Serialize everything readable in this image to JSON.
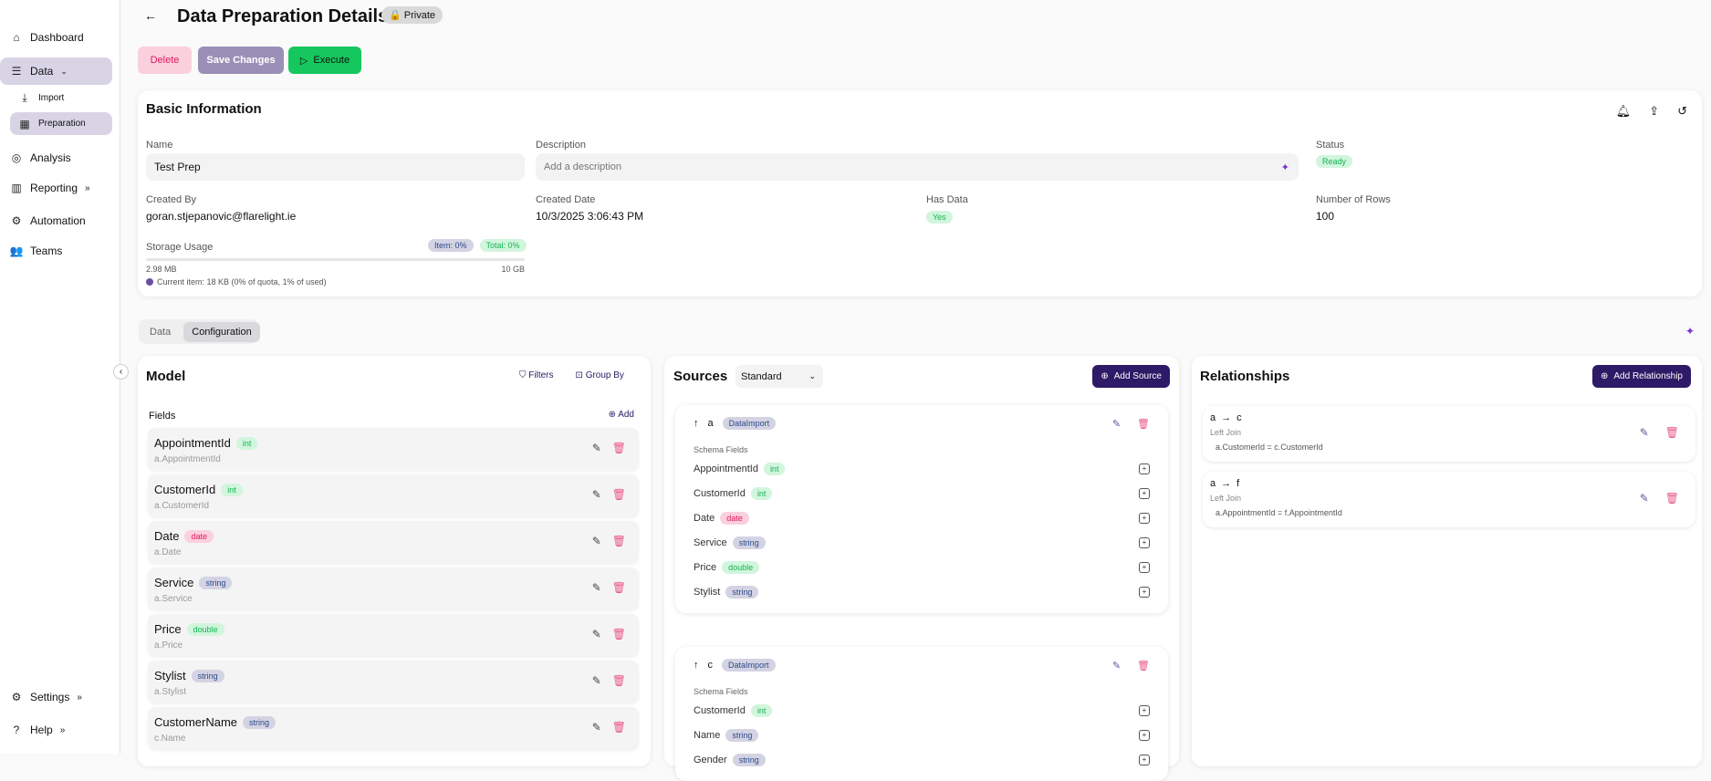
{
  "sidebar": {
    "items": [
      {
        "label": "Dashboard",
        "icon": "home-icon"
      },
      {
        "label": "Data",
        "icon": "database-icon"
      },
      {
        "label": "Import",
        "icon": "import-icon"
      },
      {
        "label": "Preparation",
        "icon": "table-icon"
      },
      {
        "label": "Analysis",
        "icon": "analysis-icon"
      },
      {
        "label": "Reporting",
        "icon": "chart-icon"
      },
      {
        "label": "Automation",
        "icon": "automation-icon"
      },
      {
        "label": "Teams",
        "icon": "teams-icon"
      },
      {
        "label": "Settings",
        "icon": "gear-icon"
      },
      {
        "label": "Help",
        "icon": "help-icon"
      }
    ]
  },
  "header": {
    "title": "Data Preparation Details",
    "privacy": "Private"
  },
  "actions": {
    "delete": "Delete",
    "save": "Save Changes",
    "execute": "Execute"
  },
  "basic": {
    "title": "Basic Information",
    "name_label": "Name",
    "name_value": "Test Prep",
    "desc_label": "Description",
    "desc_placeholder": "Add a description",
    "status_label": "Status",
    "status": "Ready",
    "created_by_label": "Created By",
    "created_by": "goran.stjepanovic@flarelight.ie",
    "created_date_label": "Created Date",
    "created_date": "10/3/2025 3:06:43 PM",
    "has_data_label": "Has Data",
    "has_data": "Yes",
    "rows_label": "Number of Rows",
    "rows": "100",
    "storage_label": "Storage Usage",
    "item_badge": "Item: 0%",
    "total_badge": "Total: 0%",
    "used": "2.98 MB",
    "quota": "10 GB",
    "storage_percent": 0,
    "current_item": "Current item: 18 KB (0% of quota, 1% of used)"
  },
  "tabs": [
    {
      "label": "Data"
    },
    {
      "label": "Configuration",
      "active": true
    }
  ],
  "model": {
    "title": "Model",
    "filters": "Filters",
    "group_by": "Group By",
    "fields_label": "Fields",
    "add": "Add",
    "fields": [
      {
        "name": "AppointmentId",
        "type": "int",
        "path": "a.AppointmentId"
      },
      {
        "name": "CustomerId",
        "type": "int",
        "path": "a.CustomerId"
      },
      {
        "name": "Date",
        "type": "date",
        "path": "a.Date"
      },
      {
        "name": "Service",
        "type": "string",
        "path": "a.Service"
      },
      {
        "name": "Price",
        "type": "double",
        "path": "a.Price"
      },
      {
        "name": "Stylist",
        "type": "string",
        "path": "a.Stylist"
      },
      {
        "name": "CustomerName",
        "type": "string",
        "path": "c.Name"
      }
    ]
  },
  "sources": {
    "title": "Sources",
    "mode": "Standard",
    "add": "Add Source",
    "schema_label": "Schema Fields",
    "list": [
      {
        "alias": "a",
        "kind": "DataImport",
        "fields": [
          {
            "name": "AppointmentId",
            "type": "int"
          },
          {
            "name": "CustomerId",
            "type": "int"
          },
          {
            "name": "Date",
            "type": "date"
          },
          {
            "name": "Service",
            "type": "string"
          },
          {
            "name": "Price",
            "type": "double"
          },
          {
            "name": "Stylist",
            "type": "string"
          }
        ]
      },
      {
        "alias": "c",
        "kind": "DataImport",
        "fields": [
          {
            "name": "CustomerId",
            "type": "int"
          },
          {
            "name": "Name",
            "type": "string"
          },
          {
            "name": "Gender",
            "type": "string"
          }
        ]
      }
    ]
  },
  "relationships": {
    "title": "Relationships",
    "add": "Add Relationship",
    "list": [
      {
        "from": "a",
        "to": "c",
        "join": "Left Join",
        "condition": "a.CustomerId = c.CustomerId"
      },
      {
        "from": "a",
        "to": "f",
        "join": "Left Join",
        "condition": "a.AppointmentId = f.AppointmentId"
      }
    ]
  },
  "colors": {
    "accent": "#2e1a66",
    "execute": "#16c75e",
    "delete_bg": "#fbd0dd",
    "save_bg": "#9b8fb7"
  }
}
